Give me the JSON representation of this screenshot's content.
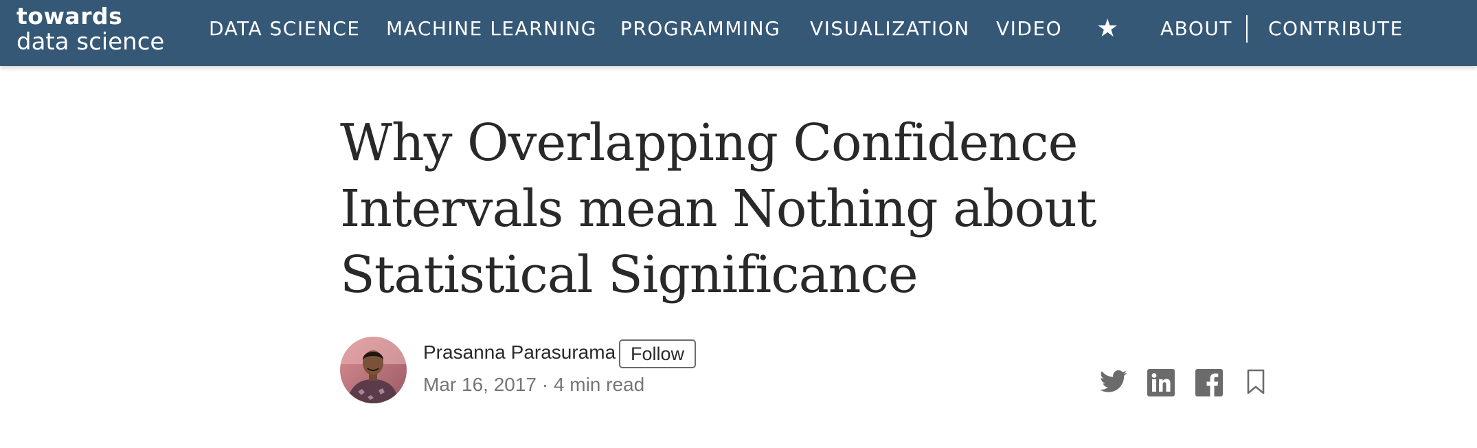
{
  "header": {
    "logo": {
      "line1": "towards",
      "line2": "data science"
    },
    "nav": [
      {
        "label": "DATA SCIENCE"
      },
      {
        "label": "MACHINE LEARNING"
      },
      {
        "label": "PROGRAMMING"
      },
      {
        "label": "VISUALIZATION"
      },
      {
        "label": "VIDEO"
      },
      {
        "label": "★"
      },
      {
        "label": "ABOUT"
      },
      {
        "label": "CONTRIBUTE"
      }
    ],
    "background_color": "#355876"
  },
  "article": {
    "title": "Why Overlapping Confidence Intervals mean Nothing about Statistical Significance",
    "author": {
      "name": "Prasanna Parasurama",
      "follow_label": "Follow",
      "avatar_icon": "avatar-photo"
    },
    "meta": {
      "date": "Mar 16, 2017",
      "separator": "·",
      "read_time": "4 min read"
    }
  },
  "share": [
    {
      "icon": "twitter-icon"
    },
    {
      "icon": "linkedin-icon"
    },
    {
      "icon": "facebook-icon"
    },
    {
      "icon": "bookmark-icon"
    }
  ],
  "colors": {
    "title_text": "#292929",
    "meta_text": "#757575",
    "icon_gray": "#6b6b6b"
  }
}
